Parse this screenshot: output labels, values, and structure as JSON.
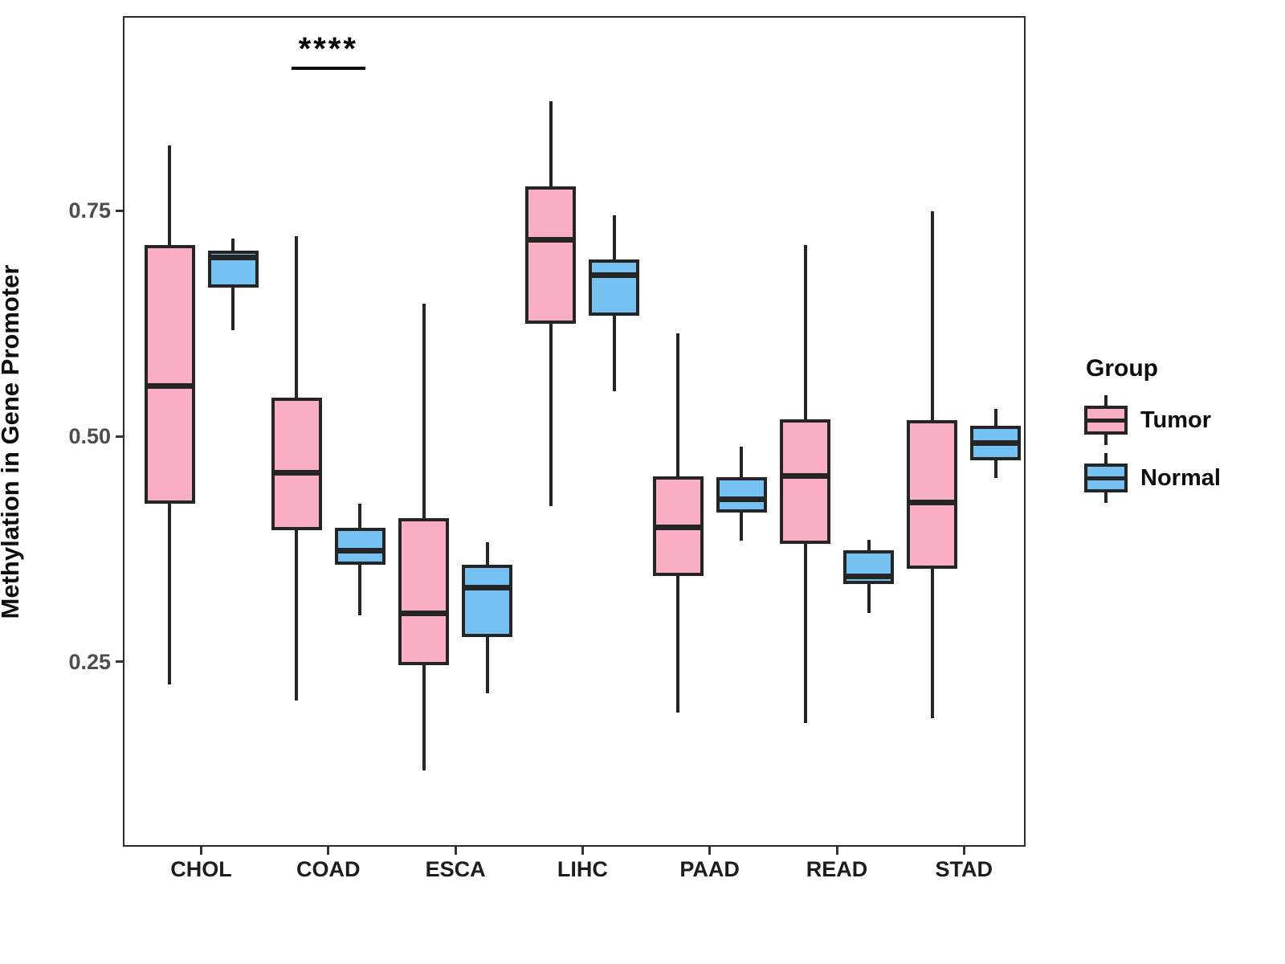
{
  "figure": {
    "background": "#FFFFFF"
  },
  "legend": {
    "title": "Group",
    "position": "right"
  },
  "chart_data": {
    "type": "boxplot",
    "title": "",
    "xlabel": "",
    "ylabel": "Methylation in Gene Promoter",
    "ylim": [
      0.047,
      0.964
    ],
    "grid": "off",
    "y_ticks": [
      {
        "value": 0.75,
        "label": "0.75"
      },
      {
        "value": 0.5,
        "label": "0.50"
      },
      {
        "value": 0.25,
        "label": "0.25"
      }
    ],
    "categories": [
      "CHOL",
      "COAD",
      "ESCA",
      "LIHC",
      "PAAD",
      "READ",
      "STAD"
    ],
    "annotation": {
      "text": "****",
      "category": "COAD",
      "y_value": 0.91
    },
    "colors": {
      "stroke": "#252525",
      "tumor_fill": "#FBAFC3",
      "normal_fill": "#74C1F2"
    },
    "series": [
      {
        "name": "Tumor",
        "fill": "#FBAFC3",
        "boxes": [
          {
            "category": "CHOL",
            "low": 0.225,
            "q1": 0.425,
            "median": 0.556,
            "q3": 0.712,
            "high": 0.822
          },
          {
            "category": "COAD",
            "low": 0.207,
            "q1": 0.396,
            "median": 0.46,
            "q3": 0.543,
            "high": 0.722
          },
          {
            "category": "ESCA",
            "low": 0.13,
            "q1": 0.246,
            "median": 0.304,
            "q3": 0.409,
            "high": 0.647
          },
          {
            "category": "LIHC",
            "low": 0.423,
            "q1": 0.625,
            "median": 0.718,
            "q3": 0.777,
            "high": 0.871
          },
          {
            "category": "PAAD",
            "low": 0.194,
            "q1": 0.345,
            "median": 0.399,
            "q3": 0.456,
            "high": 0.614
          },
          {
            "category": "READ",
            "low": 0.182,
            "q1": 0.381,
            "median": 0.456,
            "q3": 0.519,
            "high": 0.712
          },
          {
            "category": "STAD",
            "low": 0.188,
            "q1": 0.353,
            "median": 0.427,
            "q3": 0.518,
            "high": 0.749
          }
        ]
      },
      {
        "name": "Normal",
        "fill": "#74C1F2",
        "boxes": [
          {
            "category": "CHOL",
            "low": 0.618,
            "q1": 0.665,
            "median": 0.698,
            "q3": 0.706,
            "high": 0.719
          },
          {
            "category": "COAD",
            "low": 0.302,
            "q1": 0.358,
            "median": 0.373,
            "q3": 0.399,
            "high": 0.425
          },
          {
            "category": "ESCA",
            "low": 0.215,
            "q1": 0.278,
            "median": 0.332,
            "q3": 0.358,
            "high": 0.383
          },
          {
            "category": "LIHC",
            "low": 0.55,
            "q1": 0.634,
            "median": 0.679,
            "q3": 0.696,
            "high": 0.745
          },
          {
            "category": "PAAD",
            "low": 0.384,
            "q1": 0.416,
            "median": 0.43,
            "q3": 0.455,
            "high": 0.489
          },
          {
            "category": "READ",
            "low": 0.304,
            "q1": 0.336,
            "median": 0.345,
            "q3": 0.374,
            "high": 0.385
          },
          {
            "category": "STAD",
            "low": 0.454,
            "q1": 0.473,
            "median": 0.493,
            "q3": 0.512,
            "high": 0.53
          }
        ]
      }
    ]
  }
}
